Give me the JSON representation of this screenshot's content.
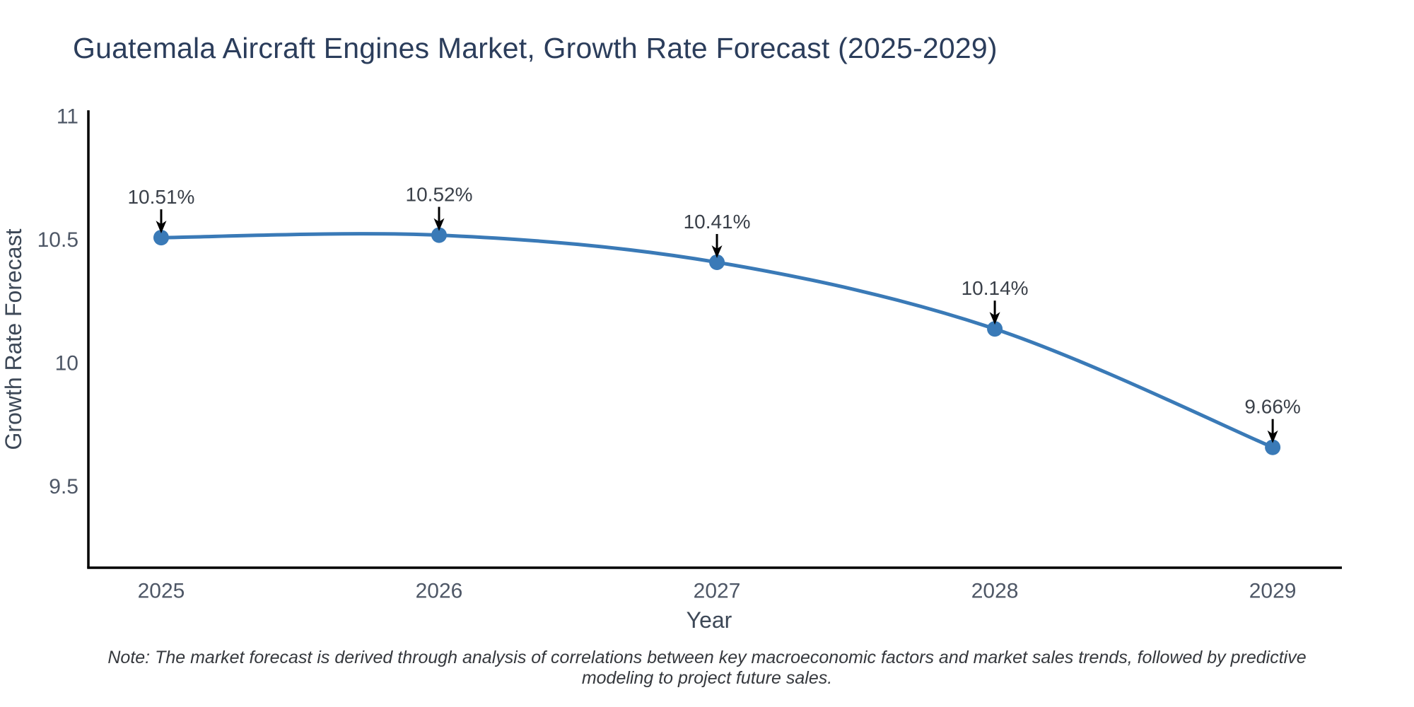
{
  "title": "Guatemala Aircraft Engines Market, Growth Rate Forecast (2025-2029)",
  "note": "Note: The market forecast is derived through analysis of correlations between key macroeconomic factors and market sales trends, followed by predictive modeling to project future sales.",
  "chart_data": {
    "type": "line",
    "title": "Guatemala Aircraft Engines Market, Growth Rate Forecast (2025-2029)",
    "xlabel": "Year",
    "ylabel": "Growth Rate Forecast",
    "x": [
      2025,
      2026,
      2027,
      2028,
      2029
    ],
    "y": [
      10.51,
      10.52,
      10.41,
      10.14,
      9.66
    ],
    "point_labels": [
      "10.51%",
      "10.52%",
      "10.41%",
      "10.14%",
      "9.66%"
    ],
    "xtick_labels": [
      "2025",
      "2026",
      "2027",
      "2028",
      "2029"
    ],
    "ytick_values": [
      11,
      10.5,
      10,
      9.5
    ],
    "ytick_labels": [
      "11",
      "10.5",
      "10",
      "9.5"
    ],
    "xlim": [
      2024.738,
      2029.249
    ],
    "ylim": [
      9.172,
      11.026
    ],
    "grid": false,
    "legend": false,
    "line_shape": "spline",
    "annotations_arrow": "down-arrow",
    "colors": {
      "line": "#3a7ab7",
      "marker": "#3a7ab7",
      "axis_line": "#000000",
      "arrow": "#000000",
      "background": "#ffffff"
    }
  }
}
